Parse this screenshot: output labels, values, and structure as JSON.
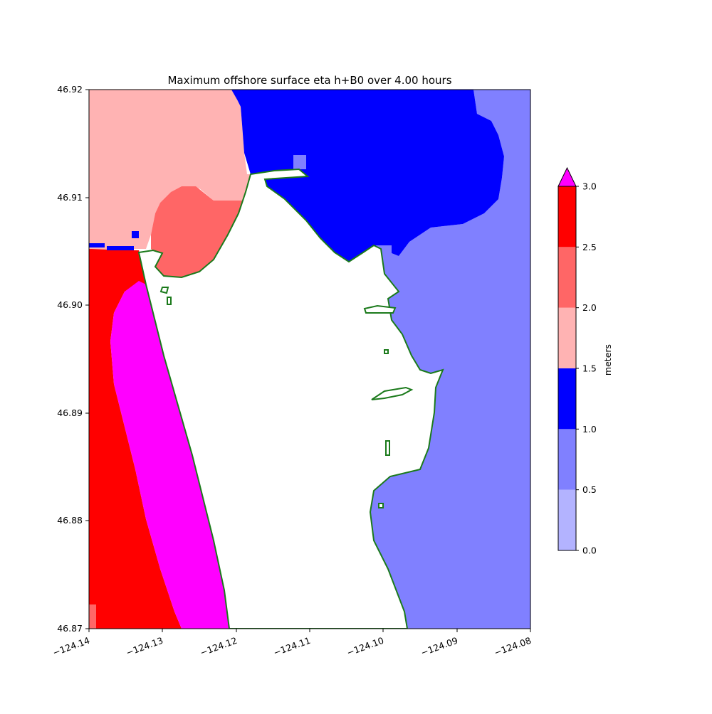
{
  "title": "Maximum offshore surface eta h+B0 over 4.00 hours",
  "map": {
    "x_ticks": [
      "−124.14",
      "−124.13",
      "−124.12",
      "−124.11",
      "−124.10",
      "−124.09",
      "−124.08"
    ],
    "y_ticks": [
      "46.87",
      "46.88",
      "46.89",
      "46.90",
      "46.91",
      "46.92"
    ],
    "x_range": [
      -124.14,
      -124.08
    ],
    "y_range": [
      46.87,
      46.92
    ],
    "shoreline_color": "#1b7a1b"
  },
  "colorbar": {
    "label": "meters",
    "levels": [
      "0.0",
      "0.5",
      "1.0",
      "1.5",
      "2.0",
      "2.5",
      "3.0"
    ],
    "colors": [
      "#b3b3ff",
      "#8080ff",
      "#0000ff",
      "#ffb3b3",
      "#ff6666",
      "#ff0000"
    ],
    "over_color": "#ff00ff",
    "extend": "max"
  }
}
